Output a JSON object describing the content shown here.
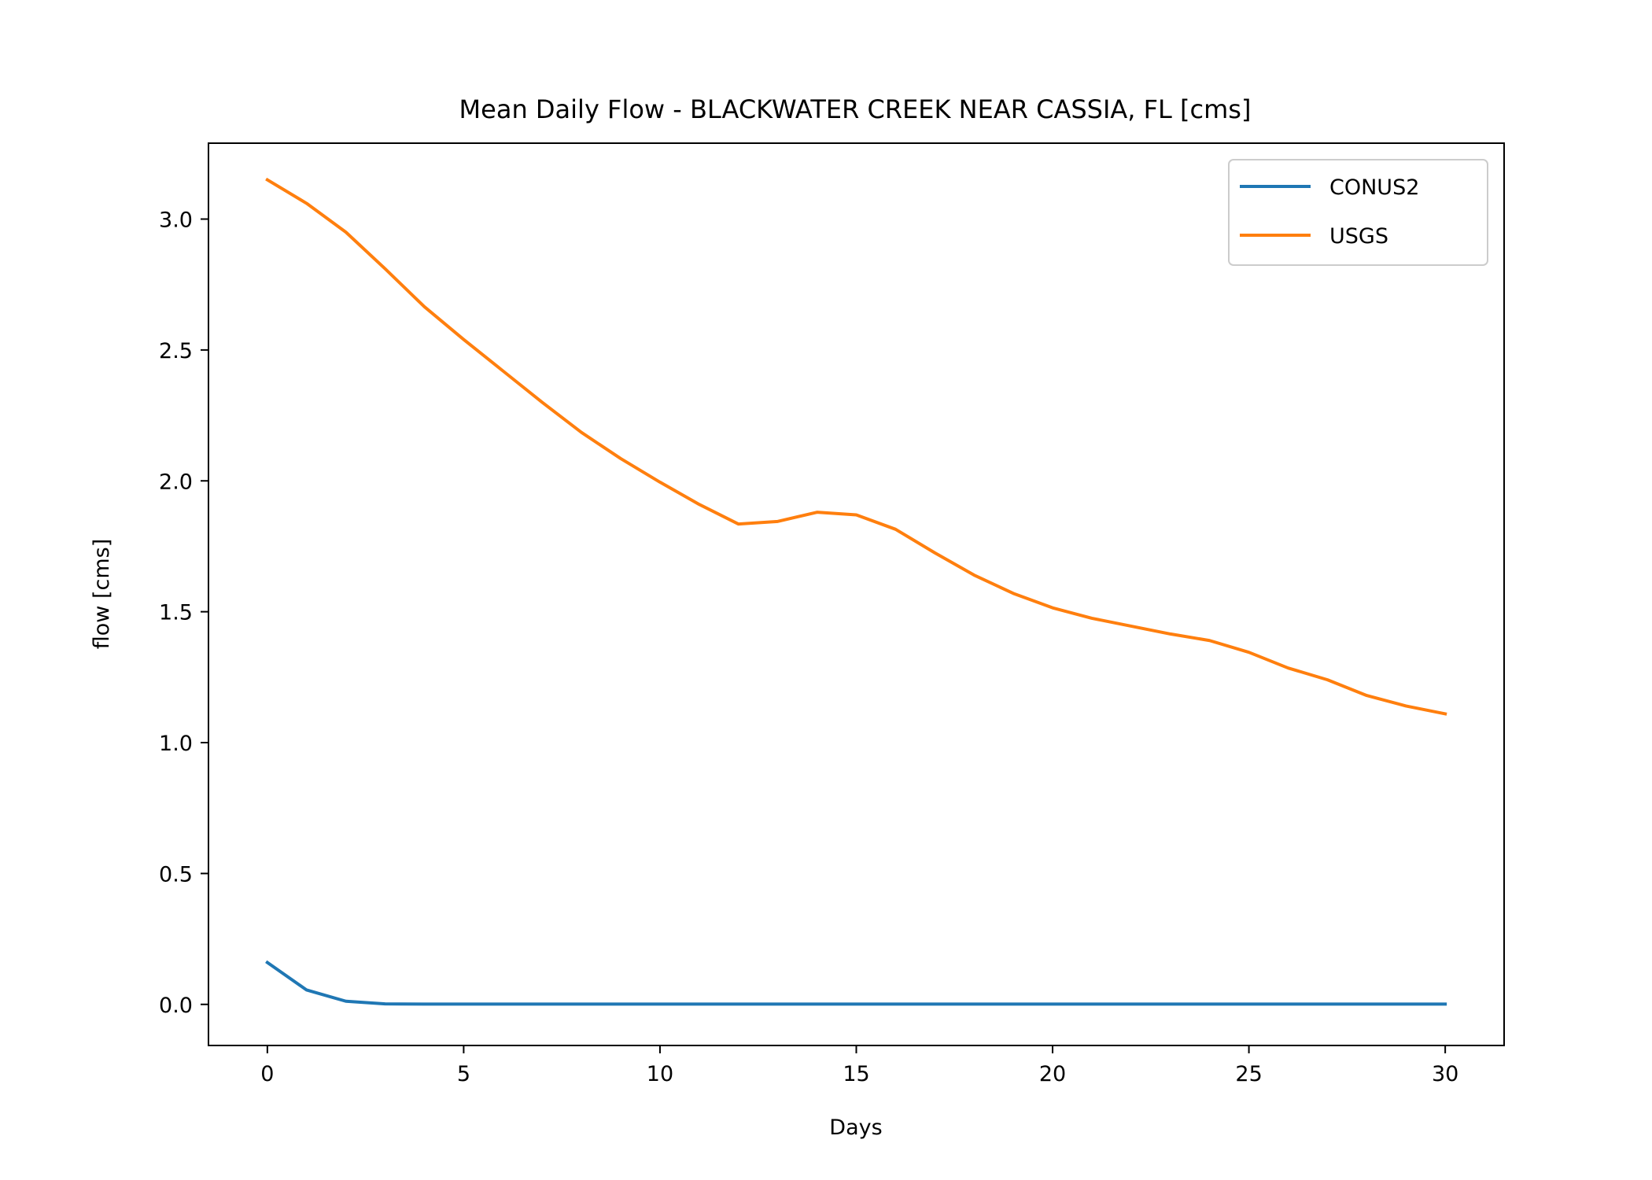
{
  "chart_data": {
    "type": "line",
    "title": "Mean Daily Flow - BLACKWATER CREEK NEAR CASSIA, FL [cms]",
    "xlabel": "Days",
    "ylabel": "flow [cms]",
    "xlim": [
      -1.5,
      31.5
    ],
    "ylim": [
      -0.157,
      3.29
    ],
    "xticks": [
      0,
      5,
      10,
      15,
      20,
      25,
      30
    ],
    "xtick_labels": [
      "0",
      "5",
      "10",
      "15",
      "20",
      "25",
      "30"
    ],
    "yticks": [
      0.0,
      0.5,
      1.0,
      1.5,
      2.0,
      2.5,
      3.0
    ],
    "ytick_labels": [
      "0.0",
      "0.5",
      "1.0",
      "1.5",
      "2.0",
      "2.5",
      "3.0"
    ],
    "grid": false,
    "legend_position": "top-right",
    "x": [
      0,
      1,
      2,
      3,
      4,
      5,
      6,
      7,
      8,
      9,
      10,
      11,
      12,
      13,
      14,
      15,
      16,
      17,
      18,
      19,
      20,
      21,
      22,
      23,
      24,
      25,
      26,
      27,
      28,
      29,
      30
    ],
    "series": [
      {
        "name": "CONUS2",
        "color": "#1f77b4",
        "values": [
          0.16,
          0.055,
          0.012,
          0.002,
          0.001,
          0.001,
          0.001,
          0.001,
          0.001,
          0.001,
          0.001,
          0.001,
          0.001,
          0.001,
          0.001,
          0.001,
          0.001,
          0.001,
          0.001,
          0.001,
          0.001,
          0.001,
          0.001,
          0.001,
          0.001,
          0.001,
          0.001,
          0.001,
          0.001,
          0.001,
          0.001
        ]
      },
      {
        "name": "USGS",
        "color": "#ff7f0e",
        "values": [
          3.15,
          3.06,
          2.95,
          2.81,
          2.665,
          2.54,
          2.42,
          2.3,
          2.185,
          2.085,
          1.995,
          1.91,
          1.835,
          1.845,
          1.88,
          1.87,
          1.815,
          1.725,
          1.64,
          1.57,
          1.515,
          1.475,
          1.445,
          1.415,
          1.39,
          1.345,
          1.285,
          1.24,
          1.18,
          1.14,
          1.11
        ]
      }
    ]
  }
}
